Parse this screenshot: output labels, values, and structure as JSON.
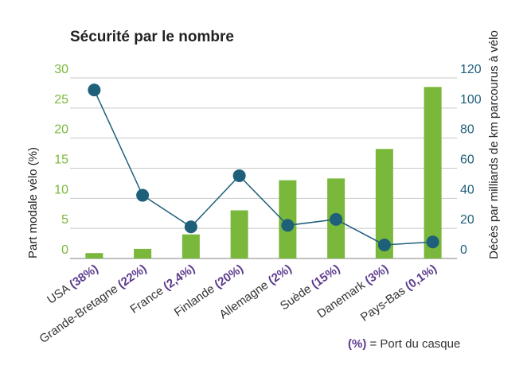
{
  "chart_data": {
    "type": "bar",
    "title": "Sécurité par le nombre",
    "categories": [
      {
        "name": "USA",
        "helmet": "38%"
      },
      {
        "name": "Grande-Bretagne",
        "helmet": "22%"
      },
      {
        "name": "France",
        "helmet": "2,4%"
      },
      {
        "name": "Finlande",
        "helmet": "20%"
      },
      {
        "name": "Allemagne",
        "helmet": "2%"
      },
      {
        "name": "Suède",
        "helmet": "15%"
      },
      {
        "name": "Danemark",
        "helmet": "3%"
      },
      {
        "name": "Pays-Bas",
        "helmet": "0,1%"
      }
    ],
    "series": [
      {
        "kind": "bar",
        "axis": "left",
        "color": "#79b83a",
        "values": [
          0.9,
          1.6,
          4.0,
          8.0,
          13.0,
          13.3,
          18.2,
          28.5
        ]
      },
      {
        "kind": "line",
        "axis": "right",
        "color": "#1e5f7a",
        "values": [
          112,
          42,
          21,
          55,
          22,
          26,
          9,
          11
        ]
      }
    ],
    "ylabel_left": "Part modale vélo (%)",
    "ylabel_right": "Décès par milliards de km parcourus à vélo",
    "yticks_left": [
      "0",
      "5",
      "10",
      "15",
      "20",
      "25",
      "30"
    ],
    "yticks_right": [
      "0",
      "20",
      "40",
      "60",
      "80",
      "100",
      "120"
    ],
    "ylim_left": [
      0,
      30
    ],
    "ylim_right": [
      0,
      120
    ],
    "grid": true,
    "note_symbol": "(%)",
    "note_text": " = Port du casque"
  }
}
